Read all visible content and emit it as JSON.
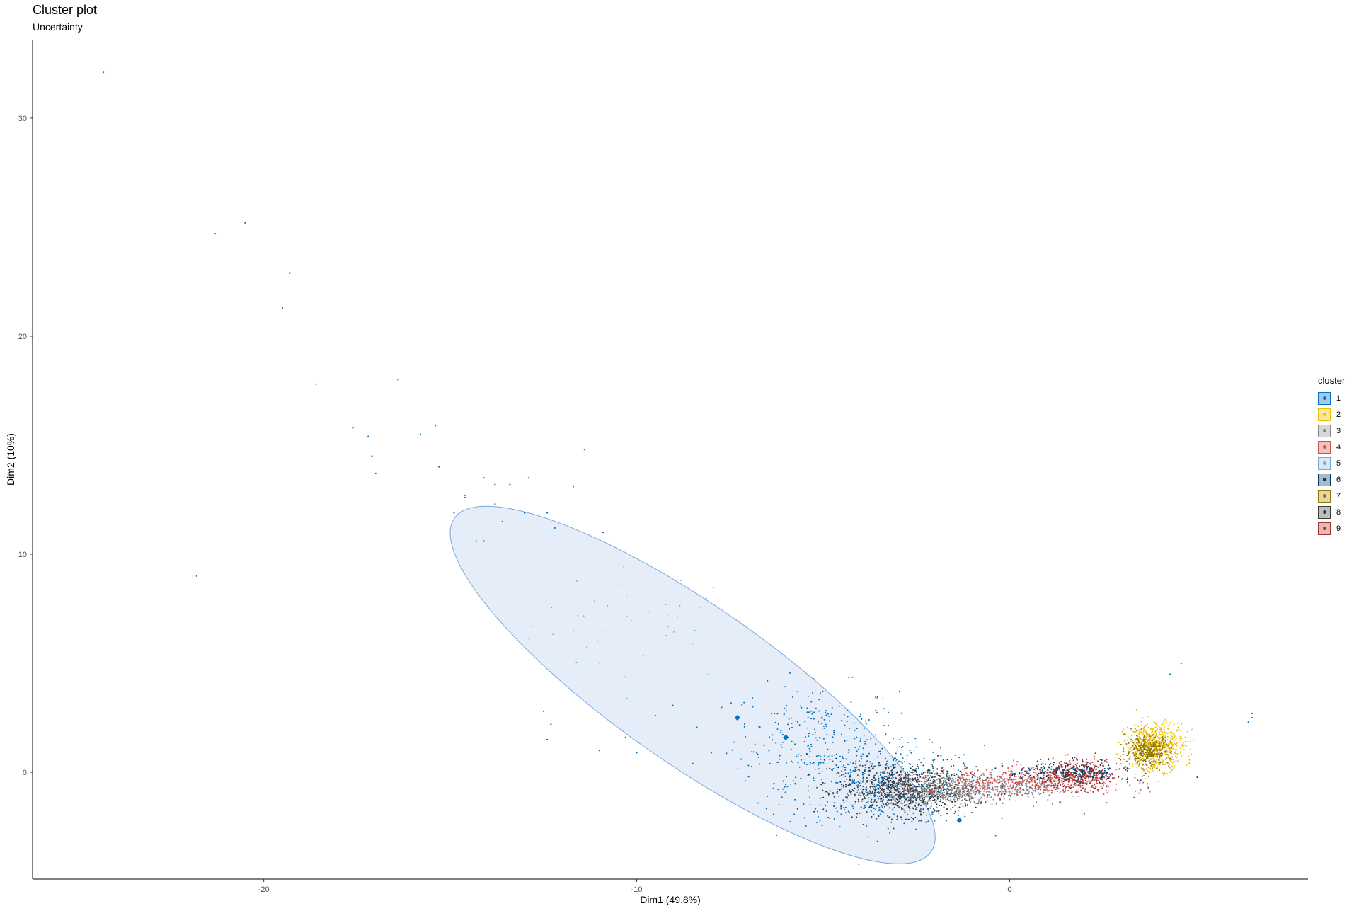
{
  "title": "Cluster plot",
  "subtitle": "Uncertainty",
  "chart_data": {
    "type": "scatter",
    "title": "Cluster plot",
    "subtitle": "Uncertainty",
    "xlabel": "Dim1 (49.8%)",
    "ylabel": "Dim2 (10%)",
    "xlim": [
      -26.2,
      8.0
    ],
    "ylim": [
      -4.9,
      33.6
    ],
    "x_ticks": [
      -20,
      -10,
      0
    ],
    "y_ticks": [
      0,
      10,
      20,
      30
    ],
    "grid": false,
    "legend_title": "cluster",
    "legend_position": "right",
    "clusters": [
      {
        "label": "1",
        "color": "#0073C2",
        "fill": "#A6C8E6"
      },
      {
        "label": "2",
        "color": "#EFC000",
        "fill": "#F7E7A0"
      },
      {
        "label": "3",
        "color": "#868686",
        "fill": "#D7D7D7"
      },
      {
        "label": "4",
        "color": "#CD534C",
        "fill": "#F0C3C1"
      },
      {
        "label": "5",
        "color": "#7AA6DC",
        "fill": "#DCE7F5"
      },
      {
        "label": "6",
        "color": "#003C67",
        "fill": "#A8B9C6"
      },
      {
        "label": "7",
        "color": "#8F7700",
        "fill": "#E0D8A8"
      },
      {
        "label": "8",
        "color": "#3B3B3B",
        "fill": "#BDBDBD"
      },
      {
        "label": "9",
        "color": "#A73030",
        "fill": "#E5B8B8"
      }
    ],
    "ellipse": {
      "cluster": "5",
      "center": [
        -8.5,
        4.0
      ],
      "rx": 7.8,
      "ry": 2.1,
      "angle_deg": -35
    },
    "centers": [
      {
        "cluster": "1",
        "x": -7.3,
        "y": 2.5
      },
      {
        "cluster": "1",
        "x": -6.0,
        "y": 1.6
      },
      {
        "cluster": "1",
        "x": -1.35,
        "y": -2.2
      },
      {
        "cluster": "2",
        "x": 3.7,
        "y": 1.3
      },
      {
        "cluster": "7",
        "x": 3.8,
        "y": 0.8
      },
      {
        "cluster": "9",
        "x": 2.2,
        "y": 0.1
      },
      {
        "cluster": "4",
        "x": -2.1,
        "y": -0.9
      }
    ],
    "outliers": [
      [
        -24.3,
        32.1
      ],
      [
        -21.3,
        24.7
      ],
      [
        -20.5,
        25.2
      ],
      [
        -19.3,
        22.9
      ],
      [
        -19.5,
        21.3
      ],
      [
        -18.6,
        17.8
      ],
      [
        -16.4,
        18.0
      ],
      [
        -17.6,
        15.8
      ],
      [
        -17.2,
        15.4
      ],
      [
        -15.8,
        15.5
      ],
      [
        -15.4,
        15.9
      ],
      [
        -17.1,
        14.5
      ],
      [
        -17.0,
        13.7
      ],
      [
        -15.3,
        14.0
      ],
      [
        -14.9,
        11.9
      ],
      [
        -14.6,
        12.6
      ],
      [
        -14.6,
        12.7
      ],
      [
        -14.1,
        13.5
      ],
      [
        -13.8,
        13.2
      ],
      [
        -13.4,
        13.2
      ],
      [
        -12.9,
        13.5
      ],
      [
        -14.3,
        10.6
      ],
      [
        -14.1,
        10.6
      ],
      [
        -13.8,
        12.3
      ],
      [
        -13.0,
        11.9
      ],
      [
        -12.4,
        11.9
      ],
      [
        -12.2,
        11.2
      ],
      [
        -11.7,
        13.1
      ],
      [
        -11.4,
        14.8
      ],
      [
        -10.9,
        11.0
      ],
      [
        -13.6,
        11.5
      ],
      [
        -21.8,
        9.0
      ],
      [
        -12.5,
        2.8
      ],
      [
        -12.3,
        2.2
      ],
      [
        -12.4,
        1.5
      ],
      [
        -11.0,
        1.0
      ],
      [
        -10.3,
        1.6
      ],
      [
        -10.0,
        0.9
      ],
      [
        -9.5,
        2.6
      ],
      [
        -8.5,
        0.4
      ],
      [
        -8.0,
        0.9
      ],
      [
        -7.2,
        0.6
      ],
      [
        -7.0,
        -0.2
      ],
      [
        -6.5,
        -1.1
      ],
      [
        -5.8,
        -0.4
      ],
      [
        2.6,
        -1.4
      ],
      [
        2.0,
        -1.9
      ],
      [
        4.3,
        4.5
      ],
      [
        4.6,
        5.0
      ],
      [
        6.5,
        2.5
      ],
      [
        6.4,
        2.3
      ],
      [
        6.5,
        2.7
      ]
    ],
    "scatter_regions": [
      {
        "cluster": "5",
        "count": 40,
        "cx": -9.8,
        "cy": 6.8,
        "sx": 1.5,
        "sy": 1.3,
        "r": 0.9
      },
      {
        "cluster": "1",
        "count": 240,
        "cx": -5.2,
        "cy": 1.8,
        "sx": 1.1,
        "sy": 1.1,
        "r": 1.0
      },
      {
        "cluster": "1",
        "count": 450,
        "cx": -3.3,
        "cy": -0.6,
        "sx": 1.3,
        "sy": 0.9,
        "r": 1.0
      },
      {
        "cluster": "6",
        "count": 140,
        "cx": -3.6,
        "cy": -0.5,
        "sx": 1.1,
        "sy": 0.7,
        "r": 1.0
      },
      {
        "cluster": "8",
        "count": 900,
        "cx": -2.7,
        "cy": -0.85,
        "sx": 0.9,
        "sy": 0.55,
        "r": 1.0
      },
      {
        "cluster": "3",
        "count": 420,
        "cx": -1.4,
        "cy": -0.8,
        "sx": 0.9,
        "sy": 0.3,
        "r": 1.0
      },
      {
        "cluster": "5",
        "count": 160,
        "cx": -0.2,
        "cy": -0.6,
        "sx": 1.2,
        "sy": 0.3,
        "r": 1.0
      },
      {
        "cluster": "4",
        "count": 520,
        "cx": 0.6,
        "cy": -0.45,
        "sx": 1.2,
        "sy": 0.3,
        "r": 1.0
      },
      {
        "cluster": "9",
        "count": 380,
        "cx": 1.8,
        "cy": -0.1,
        "sx": 0.6,
        "sy": 0.35,
        "r": 1.0
      },
      {
        "cluster": "6",
        "count": 220,
        "cx": 1.6,
        "cy": 0.0,
        "sx": 0.8,
        "sy": 0.25,
        "r": 1.0
      },
      {
        "cluster": "2",
        "count": 620,
        "cx": 3.9,
        "cy": 1.2,
        "sx": 0.4,
        "sy": 0.55,
        "r": 1.0
      },
      {
        "cluster": "7",
        "count": 340,
        "cx": 3.7,
        "cy": 1.0,
        "sx": 0.3,
        "sy": 0.35,
        "r": 1.0
      }
    ]
  }
}
